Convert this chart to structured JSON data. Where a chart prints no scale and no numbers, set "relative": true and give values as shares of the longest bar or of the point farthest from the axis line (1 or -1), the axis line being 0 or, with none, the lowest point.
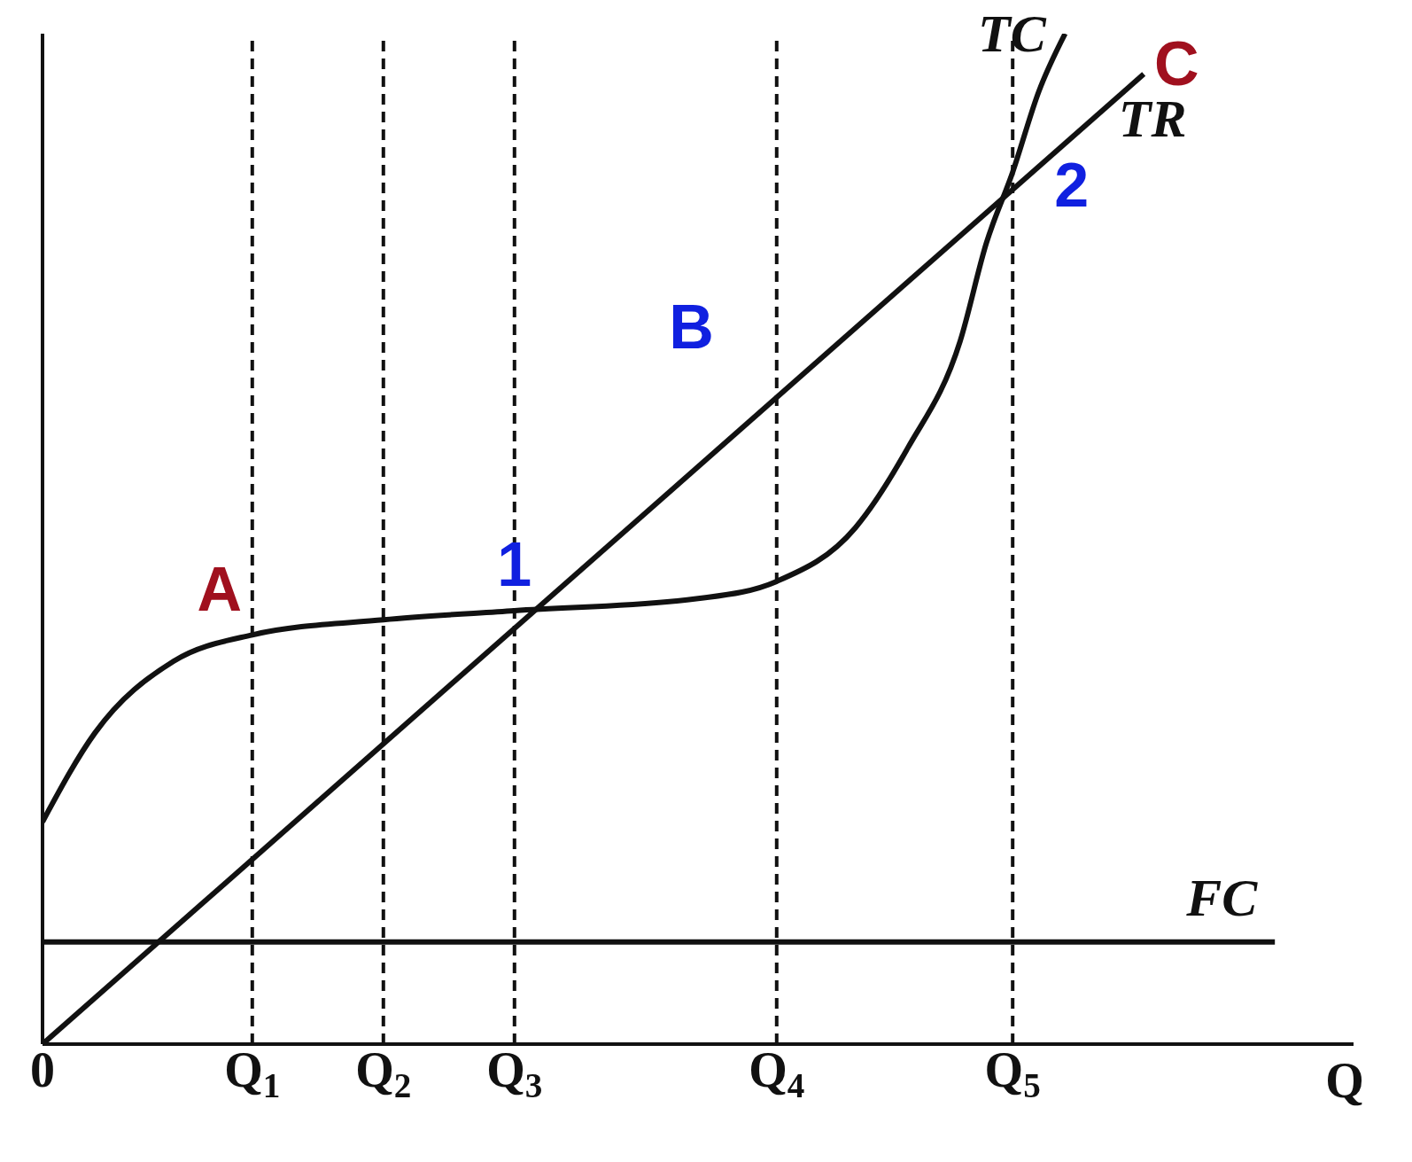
{
  "chart_data": {
    "type": "line",
    "relative": true,
    "xlabel": "Q",
    "categories": [
      "0",
      null,
      null,
      null,
      null,
      null,
      null,
      null,
      "Q$_{1}$",
      null,
      null,
      null,
      null,
      "Q$_{2}$",
      null,
      null,
      null,
      null,
      "Q$_{3}$",
      null,
      null,
      null,
      null,
      null,
      null,
      null,
      null,
      null,
      "Q$_{4}$",
      null,
      null,
      null,
      null,
      null,
      null,
      null,
      null,
      "Q$_{5}$",
      null,
      null,
      null,
      null,
      null,
      null,
      null,
      null,
      null,
      null,
      null,
      null,
      null
    ],
    "series": [
      {
        "name": "TC",
        "color": "#111111",
        "values": [
          0.22,
          null,
          0.308,
          null,
          null,
          0.379,
          null,
          null,
          0.405,
          null,
          null,
          null,
          null,
          0.42,
          null,
          null,
          null,
          null,
          0.429,
          null,
          null,
          null,
          null,
          null,
          null,
          0.441,
          null,
          null,
          0.458,
          null,
          null,
          0.511,
          null,
          0.59,
          null,
          0.696,
          0.793,
          0.863,
          0.943,
          1.0,
          null,
          null,
          null,
          null,
          null,
          null,
          null,
          null,
          null,
          null,
          null
        ]
      },
      {
        "name": "TR",
        "color": "#111111",
        "values": [
          0,
          null,
          null,
          null,
          null,
          null,
          null,
          null,
          null,
          null,
          null,
          null,
          null,
          null,
          null,
          null,
          null,
          null,
          null,
          null,
          null,
          null,
          null,
          null,
          null,
          null,
          null,
          null,
          null,
          null,
          null,
          null,
          null,
          null,
          null,
          null,
          null,
          null,
          null,
          null,
          null,
          null,
          0.96,
          null,
          null,
          null,
          null,
          null,
          null,
          null,
          null
        ]
      },
      {
        "name": "FC",
        "color": "#111111",
        "values": [
          0.101,
          null,
          null,
          null,
          null,
          null,
          null,
          null,
          null,
          null,
          null,
          null,
          null,
          null,
          null,
          null,
          null,
          null,
          null,
          null,
          null,
          null,
          null,
          null,
          null,
          null,
          null,
          null,
          null,
          null,
          null,
          null,
          null,
          null,
          null,
          null,
          null,
          null,
          null,
          null,
          null,
          null,
          null,
          null,
          null,
          null,
          null,
          0.101,
          null,
          null,
          null
        ]
      }
    ],
    "ref_lines": [
      {
        "axis": "x",
        "value": "Q$_{1}$",
        "line_style": "dashed"
      },
      {
        "axis": "x",
        "value": "Q$_{2}$",
        "line_style": "dashed"
      },
      {
        "axis": "x",
        "value": "Q$_{3}$",
        "line_style": "dashed"
      },
      {
        "axis": "x",
        "value": "Q$_{4}$",
        "line_style": "dashed"
      },
      {
        "axis": "x",
        "value": "Q$_{5}$",
        "line_style": "dashed"
      }
    ],
    "annotations": [
      "A",
      "B",
      "C",
      "1",
      "2"
    ],
    "grid": false,
    "legend": false,
    "marker": "none",
    "line_style": "solid"
  }
}
